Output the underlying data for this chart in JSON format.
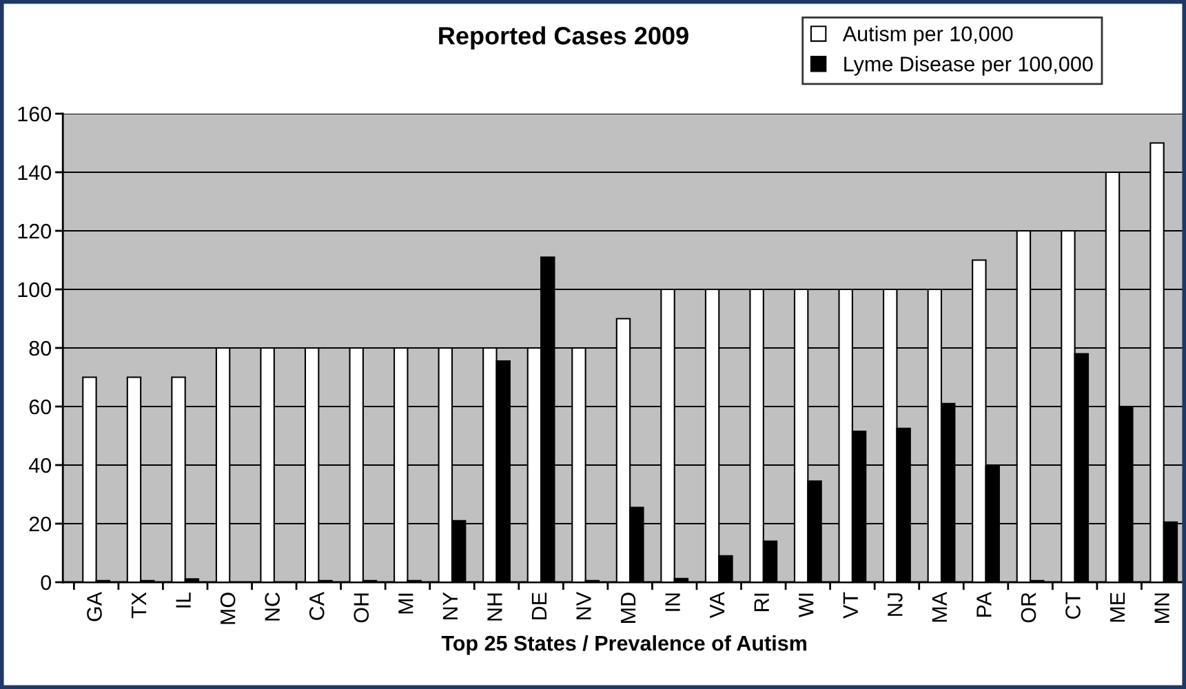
{
  "chart_data": {
    "type": "bar",
    "title": "Reported Cases 2009",
    "xlabel": "Top 25 States / Prevalence of Autism",
    "categories": [
      "GA",
      "TX",
      "IL",
      "MO",
      "NC",
      "CA",
      "OH",
      "MI",
      "NY",
      "NH",
      "DE",
      "NV",
      "MD",
      "IN",
      "VA",
      "RI",
      "WI",
      "VT",
      "NJ",
      "MA",
      "PA",
      "OR",
      "CT",
      "ME",
      "MN"
    ],
    "series": [
      {
        "name": "Autism per 10,000",
        "color": "#ffffff",
        "values": [
          70,
          70,
          70,
          80,
          80,
          80,
          80,
          80,
          80,
          80,
          80,
          80,
          90,
          100,
          100,
          100,
          100,
          100,
          100,
          100,
          110,
          120,
          120,
          140,
          150
        ]
      },
      {
        "name": "Lyme Disease per 100,000",
        "color": "#000000",
        "values": [
          0.5,
          0.5,
          1.1,
          0,
          0,
          0.5,
          0.5,
          0.5,
          21,
          75.5,
          111,
          0.5,
          25.5,
          1.2,
          9,
          14,
          34.5,
          51.5,
          52.5,
          61,
          39.5,
          0.5,
          78,
          60,
          20.5
        ]
      }
    ],
    "ylim": [
      0,
      160
    ],
    "yticks": [
      0,
      20,
      40,
      60,
      80,
      100,
      120,
      140,
      160
    ],
    "grid": "y",
    "legend": "top right"
  }
}
